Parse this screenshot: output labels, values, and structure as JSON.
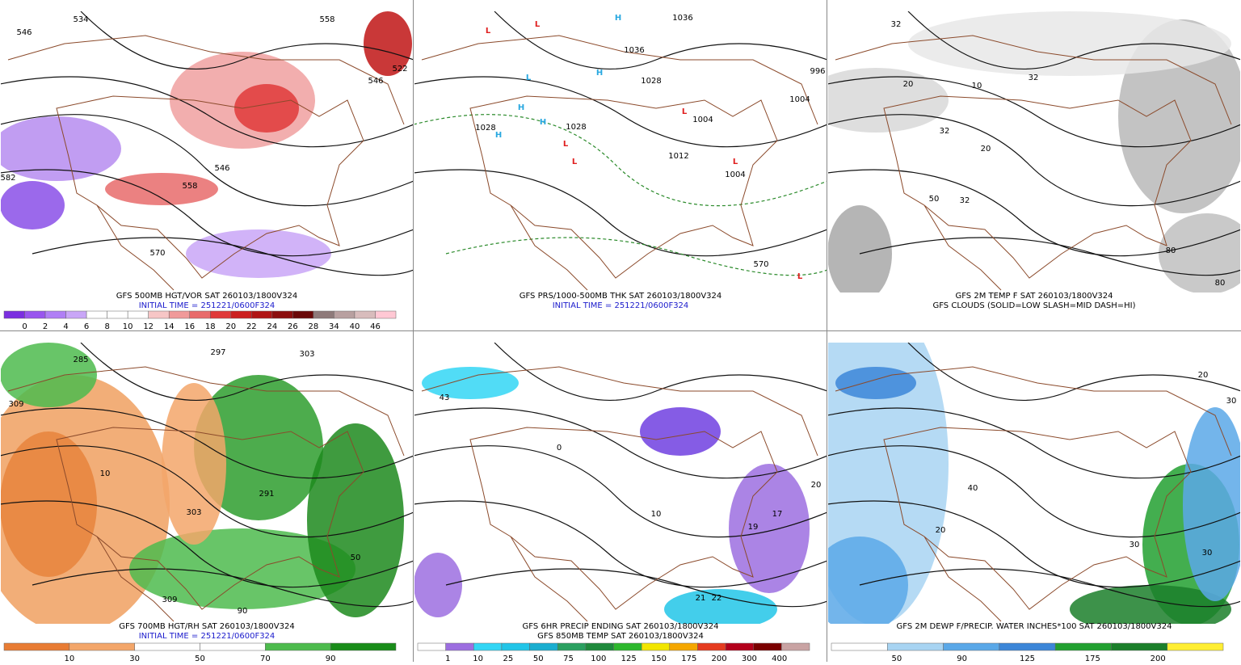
{
  "panels": [
    {
      "captions": [
        {
          "text": "GFS 500MB HGT/VOR SAT 260103/1800V324",
          "color": "#000000"
        },
        {
          "text": "INITIAL TIME = 251221/0600F324",
          "color": "#1a1acc"
        }
      ],
      "colorbar": {
        "labels": [
          "0",
          "2",
          "4",
          "6",
          "8",
          "10",
          "12",
          "14",
          "16",
          "18",
          "20",
          "22",
          "24",
          "26",
          "28",
          "34",
          "40",
          "46"
        ],
        "colors": [
          "#7b2fe0",
          "#9955ee",
          "#b07ff5",
          "#c9a6f7",
          "#ffffff",
          "#ffffff",
          "#ffffff",
          "#f7c6c6",
          "#f09a9a",
          "#e86b6b",
          "#e03a3a",
          "#cc1f1f",
          "#b01515",
          "#8c0e0e",
          "#6a0808",
          "#8e7a7a",
          "#b8a0a0",
          "#d8bcbc",
          "#ffc8d4"
        ]
      },
      "labels": [
        {
          "text": "546"
        },
        {
          "text": "534"
        },
        {
          "text": "558"
        },
        {
          "text": "546"
        },
        {
          "text": "522"
        },
        {
          "text": "546"
        },
        {
          "text": "558"
        },
        {
          "text": "570"
        },
        {
          "text": "582"
        }
      ]
    },
    {
      "captions": [
        {
          "text": "GFS PRS/1000-500MB THK SAT 260103/1800V324",
          "color": "#000000"
        },
        {
          "text": "INITIAL TIME = 251221/0600F324",
          "color": "#1a1acc"
        }
      ],
      "labels": [
        {
          "text": "1036"
        },
        {
          "text": "1036"
        },
        {
          "text": "1028"
        },
        {
          "text": "1028"
        },
        {
          "text": "1004"
        },
        {
          "text": "1012"
        },
        {
          "text": "1004"
        },
        {
          "text": "1004"
        },
        {
          "text": "996"
        },
        {
          "text": "570"
        },
        {
          "text": "1028"
        },
        {
          "text": "L",
          "color": "#e02020"
        },
        {
          "text": "L",
          "color": "#e02020"
        },
        {
          "text": "H",
          "color": "#29a8e0"
        },
        {
          "text": "H",
          "color": "#29a8e0"
        },
        {
          "text": "L",
          "color": "#29a8e0"
        },
        {
          "text": "H",
          "color": "#29a8e0"
        },
        {
          "text": "H",
          "color": "#29a8e0"
        },
        {
          "text": "H",
          "color": "#29a8e0"
        },
        {
          "text": "L",
          "color": "#e02020"
        },
        {
          "text": "L",
          "color": "#e02020"
        },
        {
          "text": "L",
          "color": "#e02020"
        },
        {
          "text": "L",
          "color": "#e02020"
        },
        {
          "text": "L",
          "color": "#e02020"
        }
      ]
    },
    {
      "captions": [
        {
          "text": "GFS 2M TEMP F SAT 260103/1800V324",
          "color": "#000000"
        },
        {
          "text": "GFS CLOUDS (SOLID=LOW SLASH=MID DASH=HI)",
          "color": "#000000"
        }
      ],
      "labels": [
        {
          "text": "32"
        },
        {
          "text": "20"
        },
        {
          "text": "10"
        },
        {
          "text": "32"
        },
        {
          "text": "32"
        },
        {
          "text": "20"
        },
        {
          "text": "32"
        },
        {
          "text": "50"
        },
        {
          "text": "80"
        },
        {
          "text": "80"
        }
      ]
    },
    {
      "captions": [
        {
          "text": "GFS 700MB HGT/RH SAT 260103/1800V324",
          "color": "#000000"
        },
        {
          "text": "INITIAL TIME = 251221/0600F324",
          "color": "#1a1acc"
        }
      ],
      "colorbar": {
        "labels": [
          "10",
          "30",
          "50",
          "70",
          "90"
        ],
        "colors": [
          "#e87c34",
          "#f3a66a",
          "#ffffff",
          "#ffffff",
          "#4dbb4d",
          "#198c19"
        ]
      },
      "labels": [
        {
          "text": "285"
        },
        {
          "text": "297"
        },
        {
          "text": "303"
        },
        {
          "text": "309"
        },
        {
          "text": "291"
        },
        {
          "text": "303"
        },
        {
          "text": "309"
        },
        {
          "text": "10"
        },
        {
          "text": "50"
        },
        {
          "text": "90"
        }
      ]
    },
    {
      "captions": [
        {
          "text": "GFS 6HR PRECIP ENDING SAT 260103/1800V324",
          "color": "#000000"
        },
        {
          "text": "GFS 850MB TEMP SAT 260103/1800V324",
          "color": "#000000"
        }
      ],
      "colorbar": {
        "labels": [
          "1",
          "10",
          "25",
          "50",
          "75",
          "100",
          "125",
          "150",
          "175",
          "200",
          "300",
          "400"
        ],
        "colors": [
          "#ffffff",
          "#9c6ee0",
          "#33d6f5",
          "#22c5e8",
          "#1aaed0",
          "#2aa060",
          "#1f8a3c",
          "#2db82d",
          "#f2e600",
          "#f5a700",
          "#e53b1f",
          "#b3001b",
          "#7a0000",
          "#c9a3a3"
        ]
      },
      "labels": [
        {
          "text": "43"
        },
        {
          "text": "20"
        },
        {
          "text": "17"
        },
        {
          "text": "19"
        },
        {
          "text": "22"
        },
        {
          "text": "21"
        },
        {
          "text": "10"
        },
        {
          "text": "0"
        }
      ]
    },
    {
      "captions": [
        {
          "text": "GFS 2M DEWP F/PRECIP. WATER INCHES*100 SAT 260103/1800V324",
          "color": "#000000"
        }
      ],
      "colorbar": {
        "labels": [
          "50",
          "90",
          "125",
          "175",
          "200"
        ],
        "colors": [
          "#ffffff",
          "#a8d4f2",
          "#5aa8e8",
          "#3c86d8",
          "#22a030",
          "#1b7f2a",
          "#ffee33"
        ]
      },
      "labels": [
        {
          "text": "20"
        },
        {
          "text": "30"
        },
        {
          "text": "40"
        },
        {
          "text": "30"
        },
        {
          "text": "30"
        },
        {
          "text": "20"
        }
      ]
    }
  ]
}
